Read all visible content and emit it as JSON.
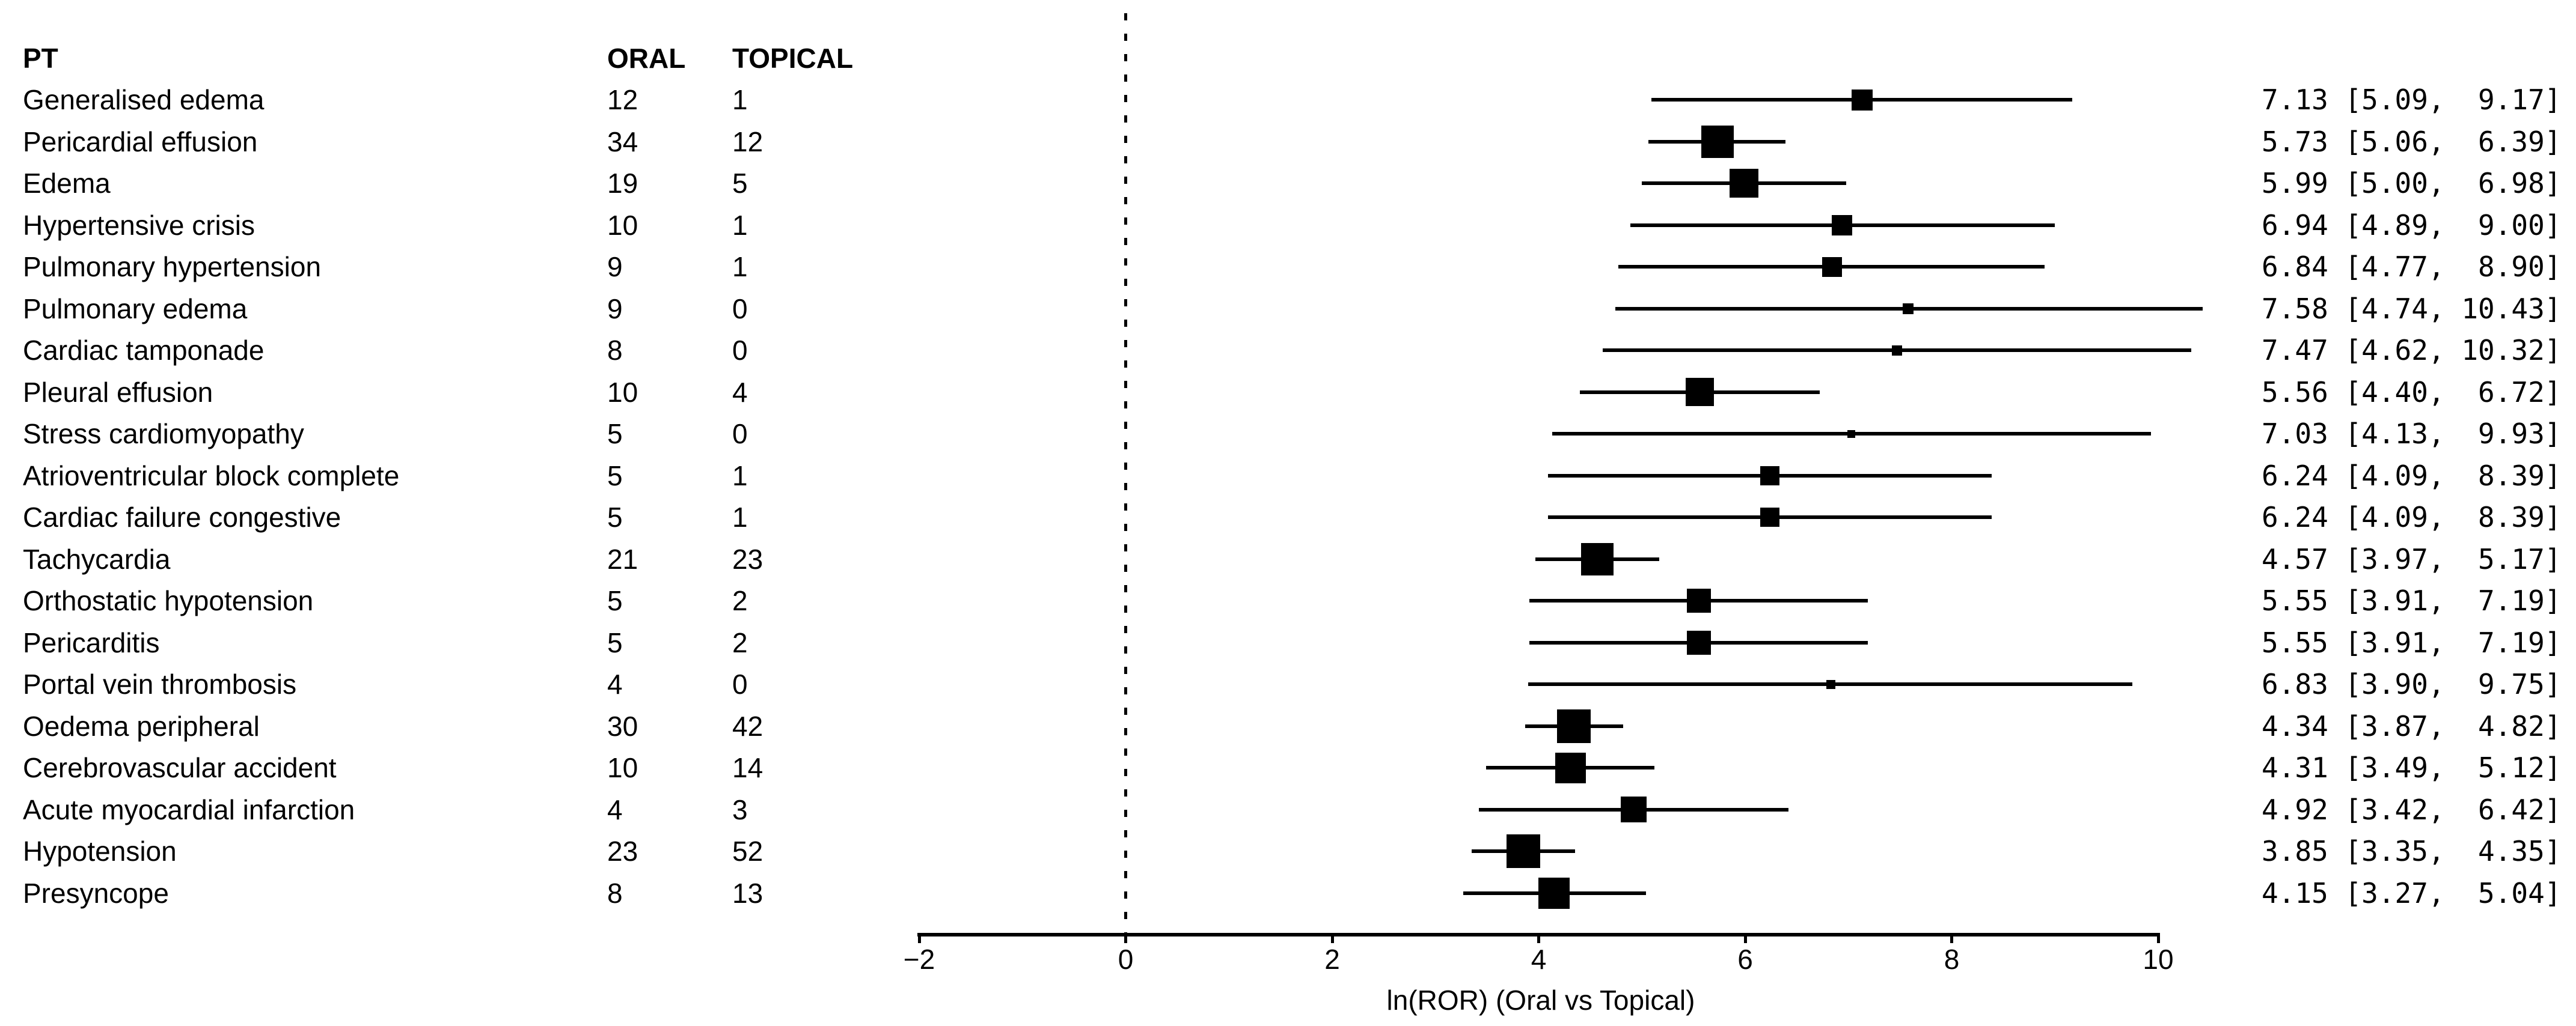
{
  "table": {
    "headers": {
      "pt": "PT",
      "oral": "ORAL",
      "topical": "TOPICAL"
    }
  },
  "colors": {
    "foreground": "#000000",
    "background": "#ffffff"
  },
  "chart_data": {
    "type": "forest",
    "xlabel": "ln(ROR) (Oral vs Topical)",
    "xlim": [
      -2,
      10
    ],
    "xticks": [
      -2,
      0,
      2,
      4,
      6,
      8,
      10
    ],
    "xtick_labels": [
      "−2",
      "0",
      "2",
      "4",
      "6",
      "8",
      "10"
    ],
    "reference_line": 0,
    "grid": false,
    "marker_color": "#000000",
    "rows": [
      {
        "pt": "Generalised edema",
        "oral": 12,
        "topical": 1,
        "est": 7.13,
        "lo": 5.09,
        "hi": 9.17,
        "ci_label": "7.13 [5.09,  9.17]",
        "marker_px": 35
      },
      {
        "pt": "Pericardial effusion",
        "oral": 34,
        "topical": 12,
        "est": 5.73,
        "lo": 5.06,
        "hi": 6.39,
        "ci_label": "5.73 [5.06,  6.39]",
        "marker_px": 54
      },
      {
        "pt": "Edema",
        "oral": 19,
        "topical": 5,
        "est": 5.99,
        "lo": 5.0,
        "hi": 6.98,
        "ci_label": "5.99 [5.00,  6.98]",
        "marker_px": 48
      },
      {
        "pt": "Hypertensive crisis",
        "oral": 10,
        "topical": 1,
        "est": 6.94,
        "lo": 4.89,
        "hi": 9.0,
        "ci_label": "6.94 [4.89,  9.00]",
        "marker_px": 34
      },
      {
        "pt": "Pulmonary hypertension",
        "oral": 9,
        "topical": 1,
        "est": 6.84,
        "lo": 4.77,
        "hi": 8.9,
        "ci_label": "6.84 [4.77,  8.90]",
        "marker_px": 33
      },
      {
        "pt": "Pulmonary edema",
        "oral": 9,
        "topical": 0,
        "est": 7.58,
        "lo": 4.74,
        "hi": 10.43,
        "ci_label": "7.58 [4.74, 10.43]",
        "marker_px": 18
      },
      {
        "pt": "Cardiac tamponade",
        "oral": 8,
        "topical": 0,
        "est": 7.47,
        "lo": 4.62,
        "hi": 10.32,
        "ci_label": "7.47 [4.62, 10.32]",
        "marker_px": 17
      },
      {
        "pt": "Pleural effusion",
        "oral": 10,
        "topical": 4,
        "est": 5.56,
        "lo": 4.4,
        "hi": 6.72,
        "ci_label": "5.56 [4.40,  6.72]",
        "marker_px": 47
      },
      {
        "pt": "Stress cardiomyopathy",
        "oral": 5,
        "topical": 0,
        "est": 7.03,
        "lo": 4.13,
        "hi": 9.93,
        "ci_label": "7.03 [4.13,  9.93]",
        "marker_px": 13
      },
      {
        "pt": "Atrioventricular block complete",
        "oral": 5,
        "topical": 1,
        "est": 6.24,
        "lo": 4.09,
        "hi": 8.39,
        "ci_label": "6.24 [4.09,  8.39]",
        "marker_px": 32
      },
      {
        "pt": "Cardiac failure congestive",
        "oral": 5,
        "topical": 1,
        "est": 6.24,
        "lo": 4.09,
        "hi": 8.39,
        "ci_label": "6.24 [4.09,  8.39]",
        "marker_px": 32
      },
      {
        "pt": "Tachycardia",
        "oral": 21,
        "topical": 23,
        "est": 4.57,
        "lo": 3.97,
        "hi": 5.17,
        "ci_label": "4.57 [3.97,  5.17]",
        "marker_px": 54
      },
      {
        "pt": "Orthostatic hypotension",
        "oral": 5,
        "topical": 2,
        "est": 5.55,
        "lo": 3.91,
        "hi": 7.19,
        "ci_label": "5.55 [3.91,  7.19]",
        "marker_px": 40
      },
      {
        "pt": "Pericarditis",
        "oral": 5,
        "topical": 2,
        "est": 5.55,
        "lo": 3.91,
        "hi": 7.19,
        "ci_label": "5.55 [3.91,  7.19]",
        "marker_px": 40
      },
      {
        "pt": "Portal vein thrombosis",
        "oral": 4,
        "topical": 0,
        "est": 6.83,
        "lo": 3.9,
        "hi": 9.75,
        "ci_label": "6.83 [3.90,  9.75]",
        "marker_px": 15
      },
      {
        "pt": "Oedema peripheral",
        "oral": 30,
        "topical": 42,
        "est": 4.34,
        "lo": 3.87,
        "hi": 4.82,
        "ci_label": "4.34 [3.87,  4.82]",
        "marker_px": 56
      },
      {
        "pt": "Cerebrovascular accident",
        "oral": 10,
        "topical": 14,
        "est": 4.31,
        "lo": 3.49,
        "hi": 5.12,
        "ci_label": "4.31 [3.49,  5.12]",
        "marker_px": 51
      },
      {
        "pt": "Acute myocardial infarction",
        "oral": 4,
        "topical": 3,
        "est": 4.92,
        "lo": 3.42,
        "hi": 6.42,
        "ci_label": "4.92 [3.42,  6.42]",
        "marker_px": 43
      },
      {
        "pt": "Hypotension",
        "oral": 23,
        "topical": 52,
        "est": 3.85,
        "lo": 3.35,
        "hi": 4.35,
        "ci_label": "3.85 [3.35,  4.35]",
        "marker_px": 56
      },
      {
        "pt": "Presyncope",
        "oral": 8,
        "topical": 13,
        "est": 4.15,
        "lo": 3.27,
        "hi": 5.04,
        "ci_label": "4.15 [3.27,  5.04]",
        "marker_px": 52
      }
    ]
  }
}
